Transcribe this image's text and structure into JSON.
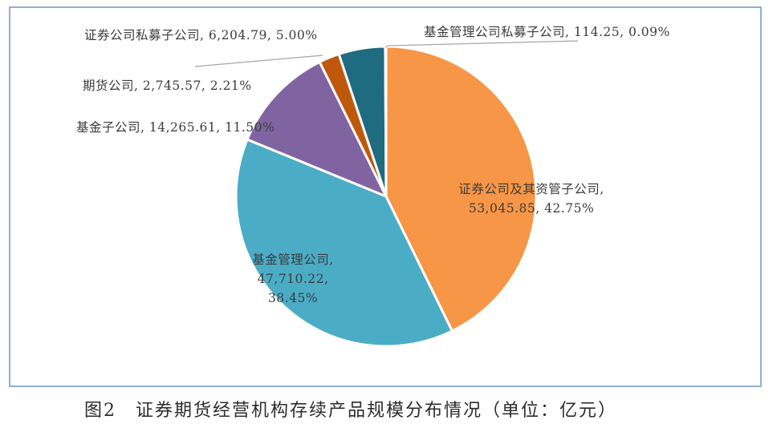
{
  "chart_data": {
    "type": "pie",
    "title": "图2  证券期货经营机构存续产品规模分布情况（单位：亿元）",
    "unit": "亿元",
    "categories": [
      "证券公司及其资管子公司",
      "基金管理公司",
      "基金子公司",
      "期货公司",
      "证券公司私募子公司",
      "基金管理公司私募子公司"
    ],
    "values": [
      53045.85,
      47710.22,
      14265.61,
      2745.57,
      6204.79,
      114.25
    ],
    "percentages": [
      42.75,
      38.45,
      11.5,
      2.21,
      5.0,
      0.09
    ],
    "colors": [
      "#f79646",
      "#4bacc6",
      "#8064a2",
      "#c0580c",
      "#1f6b7f",
      "#f79646"
    ],
    "data_labels": {
      "securities_am": {
        "name": "证券公司及其资管子公司,",
        "value_pct": "53,045.85, 42.75%"
      },
      "fund_mgmt": {
        "name": "基金管理公司,",
        "value": "47,710.22,",
        "pct": "38.45%"
      },
      "fund_sub": "基金子公司, 14,265.61, 11.50%",
      "futures": "期货公司, 2,745.57, 2.21%",
      "sec_private": "证券公司私募子公司, 6,204.79, 5.00%",
      "fund_private": "基金管理公司私募子公司, 114.25, 0.09%"
    },
    "legend": "none (data labels)",
    "start_angle": "12 o'clock, clockwise"
  },
  "caption": {
    "figure_no": "图2",
    "text": "证券期货经营机构存续产品规模分布情况（单位：亿元）"
  }
}
